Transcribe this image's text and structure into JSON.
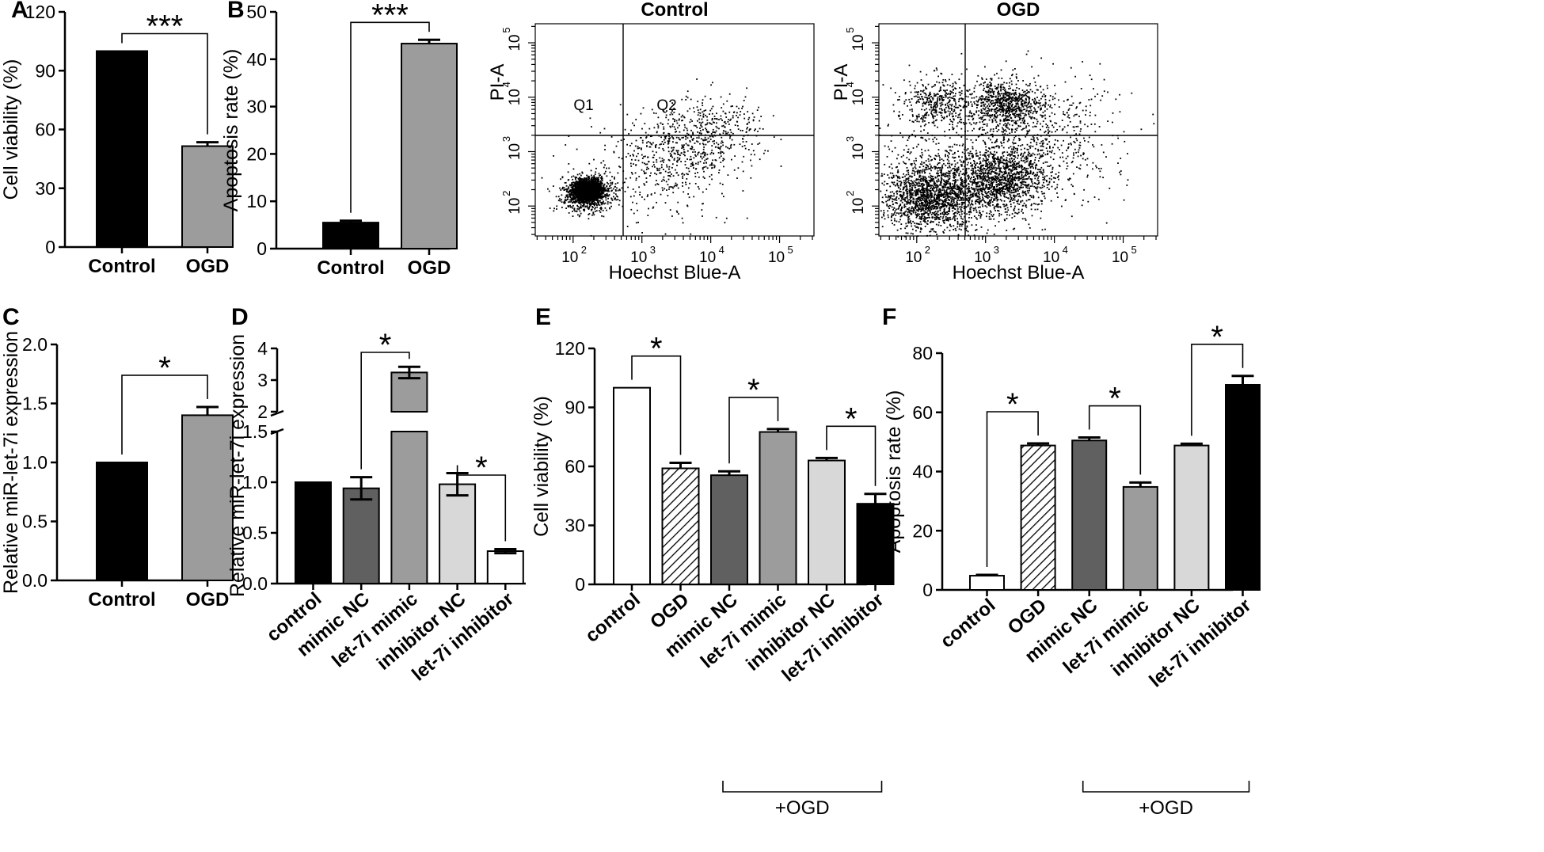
{
  "chart_data": [
    {
      "id": "A",
      "type": "bar",
      "panel_label": "A",
      "ylabel": "Cell viability (%)",
      "ylim": [
        0,
        120
      ],
      "yticks": [
        "0",
        "30",
        "60",
        "90",
        "120"
      ],
      "categories": [
        "Control",
        "OGD"
      ],
      "values": [
        100,
        51.5
      ],
      "errors": [
        0,
        2
      ],
      "bar_colors": [
        "#000000",
        "#9c9c9c"
      ],
      "significance": [
        {
          "from": 0,
          "to": 1,
          "label": "***"
        }
      ]
    },
    {
      "id": "B",
      "type": "bar",
      "panel_label": "B",
      "ylabel": "Apoptosis rate (%)",
      "ylim": [
        0,
        50
      ],
      "yticks": [
        "0",
        "10",
        "20",
        "30",
        "40",
        "50"
      ],
      "categories": [
        "Control",
        "OGD"
      ],
      "values": [
        5.5,
        43.3
      ],
      "errors": [
        0.4,
        0.8
      ],
      "bar_colors": [
        "#000000",
        "#9c9c9c"
      ],
      "significance": [
        {
          "from": 0,
          "to": 1,
          "label": "***"
        }
      ]
    },
    {
      "id": "FC1",
      "type": "scatter",
      "title": "Control",
      "xlabel": "Hoechst Blue-A",
      "ylabel": "PI-A",
      "xticks": [
        "10",
        "10",
        "10",
        "10"
      ],
      "xtick_exps": [
        "2",
        "3",
        "4",
        "5"
      ],
      "yticks": [
        "10",
        "10",
        "10",
        "10"
      ],
      "ytick_exps": [
        "2",
        "3",
        "4",
        "5"
      ],
      "quadrant_labels": [
        "Q1",
        "Q2"
      ],
      "populations": [
        {
          "cx": 2.2,
          "cy": 2.3,
          "spread": 0.1,
          "count": 1800
        },
        {
          "cx": 2.2,
          "cy": 2.25,
          "spread": 0.18,
          "count": 900
        },
        {
          "cx": 3.5,
          "cy": 3.0,
          "spread": 0.42,
          "count": 450
        },
        {
          "cx": 4.1,
          "cy": 3.4,
          "spread": 0.35,
          "count": 280
        },
        {
          "cx": 3.0,
          "cy": 2.4,
          "spread": 0.6,
          "count": 160
        }
      ]
    },
    {
      "id": "FC2",
      "type": "scatter",
      "title": "OGD",
      "xlabel": "Hoechst Blue-A",
      "ylabel": "PI-A",
      "xticks": [
        "10",
        "10",
        "10",
        "10"
      ],
      "xtick_exps": [
        "2",
        "3",
        "4",
        "5"
      ],
      "yticks": [
        "10",
        "10",
        "10",
        "10"
      ],
      "ytick_exps": [
        "2",
        "3",
        "4",
        "5"
      ],
      "populations": [
        {
          "cx": 2.2,
          "cy": 2.2,
          "spread": 0.35,
          "count": 1600
        },
        {
          "cx": 3.2,
          "cy": 2.5,
          "spread": 0.35,
          "count": 1300
        },
        {
          "cx": 3.3,
          "cy": 3.9,
          "spread": 0.25,
          "count": 700
        },
        {
          "cx": 2.3,
          "cy": 3.9,
          "spread": 0.25,
          "count": 400
        },
        {
          "cx": 3.8,
          "cy": 3.3,
          "spread": 0.6,
          "count": 500
        },
        {
          "cx": 2.6,
          "cy": 2.8,
          "spread": 0.8,
          "count": 500
        }
      ]
    },
    {
      "id": "C",
      "type": "bar",
      "panel_label": "C",
      "ylabel": "Relative miR-let-7i expression",
      "ylim": [
        0,
        2.0
      ],
      "yticks": [
        "0.0",
        "0.5",
        "1.0",
        "1.5",
        "2.0"
      ],
      "categories": [
        "Control",
        "OGD"
      ],
      "values": [
        1.0,
        1.4
      ],
      "errors": [
        0,
        0.07
      ],
      "bar_colors": [
        "#000000",
        "#9c9c9c"
      ],
      "significance": [
        {
          "from": 0,
          "to": 1,
          "label": "*"
        }
      ]
    },
    {
      "id": "D",
      "type": "bar",
      "panel_label": "D",
      "ylabel": "Relative miR-let-7i expression",
      "ylim": [
        0,
        4
      ],
      "axis_break": [
        1.5,
        2
      ],
      "yticks_lower": [
        "0.0",
        "0.5",
        "1.0",
        "1.5"
      ],
      "yticks_upper": [
        "2",
        "3",
        "4"
      ],
      "categories": [
        "control",
        "mimic NC",
        "let-7i mimic",
        "inhibitor NC",
        "let-7i inhibitor"
      ],
      "values": [
        1.0,
        0.94,
        3.24,
        0.98,
        0.32
      ],
      "errors": [
        0,
        0.11,
        0.18,
        0.11,
        0.02
      ],
      "bar_colors": [
        "#000000",
        "#606060",
        "#9c9c9c",
        "#d8d8d8",
        "#ffffff"
      ],
      "significance": [
        {
          "from": 1,
          "to": 2,
          "label": "*"
        },
        {
          "from": 3,
          "to": 4,
          "label": "*"
        }
      ]
    },
    {
      "id": "E",
      "type": "bar",
      "panel_label": "E",
      "ylabel": "Cell viability (%)",
      "ylim": [
        0,
        120
      ],
      "yticks": [
        "0",
        "30",
        "60",
        "90",
        "120"
      ],
      "categories": [
        "control",
        "OGD",
        "mimic NC",
        "let-7i mimic",
        "inhibitor NC",
        "let-7i inhibitor"
      ],
      "values": [
        100,
        59,
        55.5,
        77.5,
        63,
        41
      ],
      "errors": [
        0,
        2.8,
        2,
        1.5,
        1.3,
        5
      ],
      "bar_colors": [
        "#ffffff",
        "hatch",
        "#606060",
        "#9c9c9c",
        "#d8d8d8",
        "#000000"
      ],
      "significance": [
        {
          "from": 0,
          "to": 1,
          "label": "*"
        },
        {
          "from": 2,
          "to": 3,
          "label": "*"
        },
        {
          "from": 4,
          "to": 5,
          "label": "*"
        }
      ],
      "group_label": "+OGD",
      "group_range": [
        2,
        5
      ]
    },
    {
      "id": "F",
      "type": "bar",
      "panel_label": "F",
      "ylabel": "Apoptosis rate (%)",
      "ylim": [
        0,
        80
      ],
      "yticks": [
        "0",
        "20",
        "40",
        "60",
        "80"
      ],
      "categories": [
        "control",
        "OGD",
        "mimic NC",
        "let-7i mimic",
        "inhibitor NC",
        "let-7i inhibitor"
      ],
      "values": [
        4.8,
        48.8,
        50.5,
        34.8,
        48.8,
        69.3
      ],
      "errors": [
        0.3,
        0.7,
        1,
        1.5,
        0.6,
        3
      ],
      "bar_colors": [
        "#ffffff",
        "hatch",
        "#606060",
        "#9c9c9c",
        "#d8d8d8",
        "#000000"
      ],
      "significance": [
        {
          "from": 0,
          "to": 1,
          "label": "*"
        },
        {
          "from": 2,
          "to": 3,
          "label": "*"
        },
        {
          "from": 4,
          "to": 5,
          "label": "*"
        }
      ],
      "group_label": "+OGD",
      "group_range": [
        2,
        5
      ]
    }
  ]
}
